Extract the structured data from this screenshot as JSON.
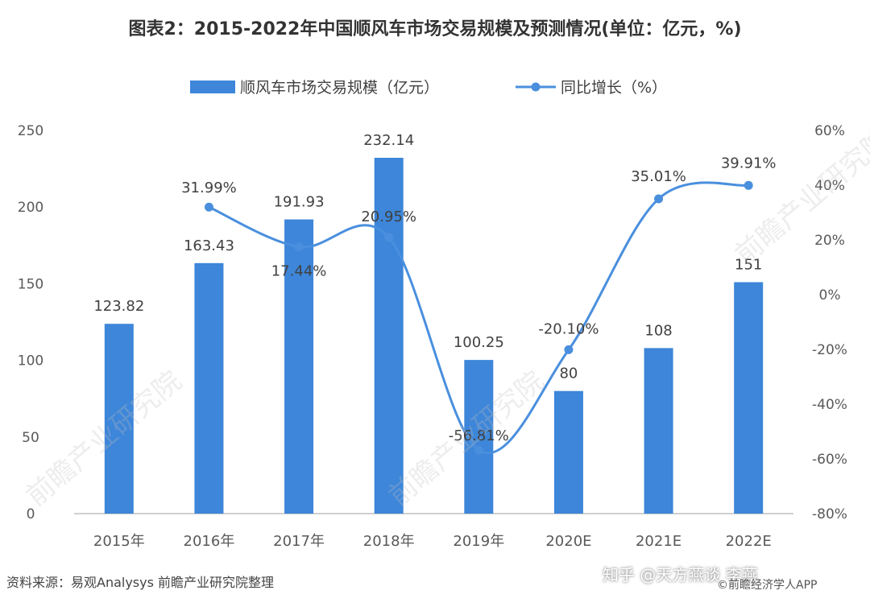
{
  "title": "图表2：2015-2022年中国顺风车市场交易规模及预测情况(单位：亿元，%)",
  "source": "资料来源：易观Analysys 前瞻产业研究院整理",
  "watermarks": {
    "zhihu": "知乎 @天方燕谈 李燕",
    "app": "©前瞻经济学人APP",
    "faint": "前瞻产业研究院"
  },
  "colors": {
    "bar": "#3d86d9",
    "line": "#4a8fde",
    "axis": "#bfbfbf",
    "text": "#595959"
  },
  "chart_data": {
    "type": "bar+line",
    "categories": [
      "2015年",
      "2016年",
      "2017年",
      "2018年",
      "2019年",
      "2020E",
      "2021E",
      "2022E"
    ],
    "series": [
      {
        "name": "顺风车市场交易规模（亿元）",
        "type": "bar",
        "axis": "left",
        "values": [
          123.82,
          163.43,
          191.93,
          232.14,
          100.25,
          80,
          108,
          151
        ],
        "labels": [
          "123.82",
          "163.43",
          "191.93",
          "232.14",
          "100.25",
          "80",
          "108",
          "151"
        ]
      },
      {
        "name": "同比增长（%）",
        "type": "line",
        "axis": "right",
        "values": [
          null,
          31.99,
          17.44,
          20.95,
          -56.81,
          -20.1,
          35.01,
          39.91
        ],
        "labels": [
          "",
          "31.99%",
          "17.44%",
          "20.95%",
          "-56.81%",
          "-20.10%",
          "35.01%",
          "39.91%"
        ]
      }
    ],
    "y_left": {
      "min": 0,
      "max": 250,
      "ticks": [
        "0",
        "50",
        "100",
        "150",
        "200",
        "250"
      ]
    },
    "y_right": {
      "min": -80,
      "max": 60,
      "ticks": [
        "-80%",
        "-60%",
        "-40%",
        "-20%",
        "0%",
        "20%",
        "40%",
        "60%"
      ]
    },
    "legend_position": "top-center"
  }
}
